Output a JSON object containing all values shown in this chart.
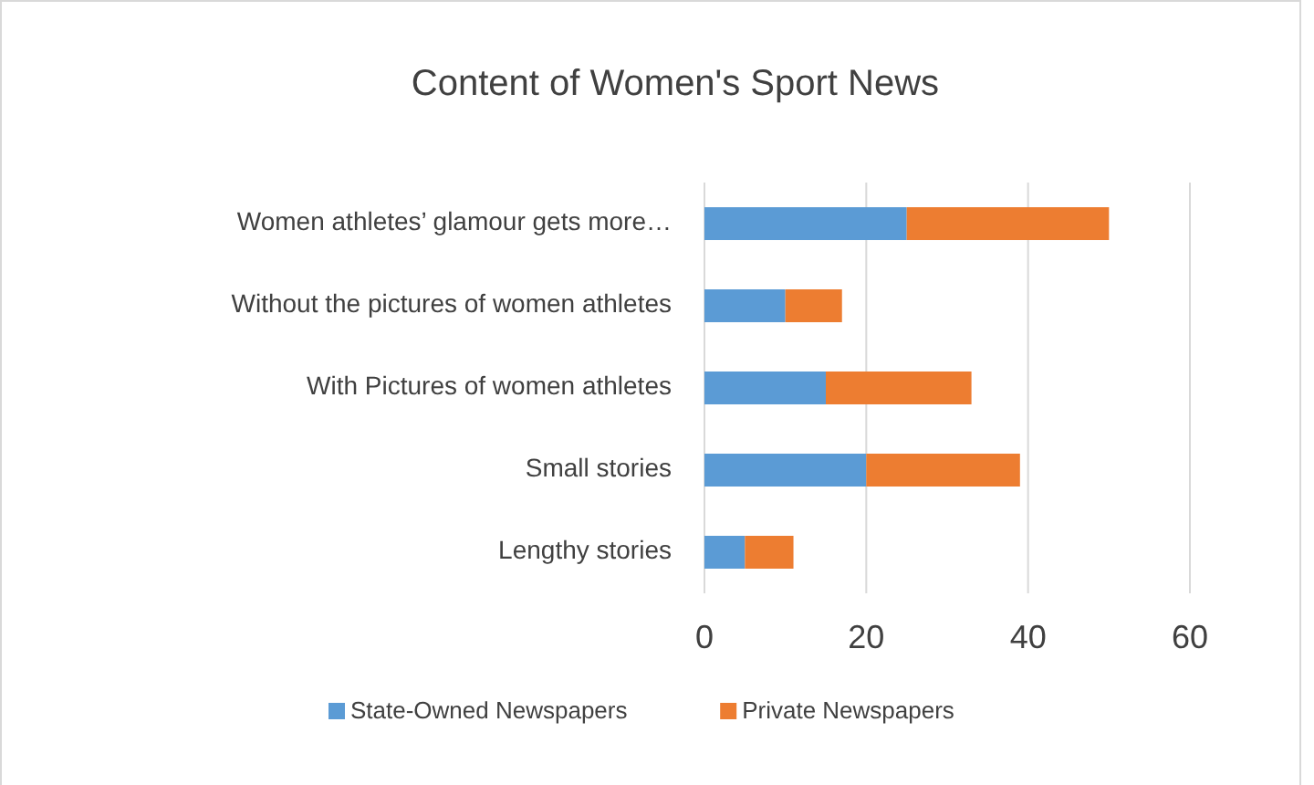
{
  "chart_data": {
    "type": "bar",
    "title": "Content of Women's Sport News",
    "orientation": "horizontal",
    "stacked": true,
    "categories": [
      "Women athletes’ glamour gets more…",
      "Without the pictures of women athletes",
      "With Pictures of women athletes",
      "Small stories",
      "Lengthy stories"
    ],
    "series": [
      {
        "name": "State-Owned Newspapers",
        "color": "#5b9bd5",
        "values": [
          25,
          10,
          15,
          20,
          5
        ]
      },
      {
        "name": "Private Newspapers",
        "color": "#ed7d31",
        "values": [
          25,
          7,
          18,
          19,
          6
        ]
      }
    ],
    "xlim": [
      0,
      60
    ],
    "xticks": [
      0,
      20,
      40,
      60
    ],
    "grid": "x",
    "legend": "bottom"
  }
}
